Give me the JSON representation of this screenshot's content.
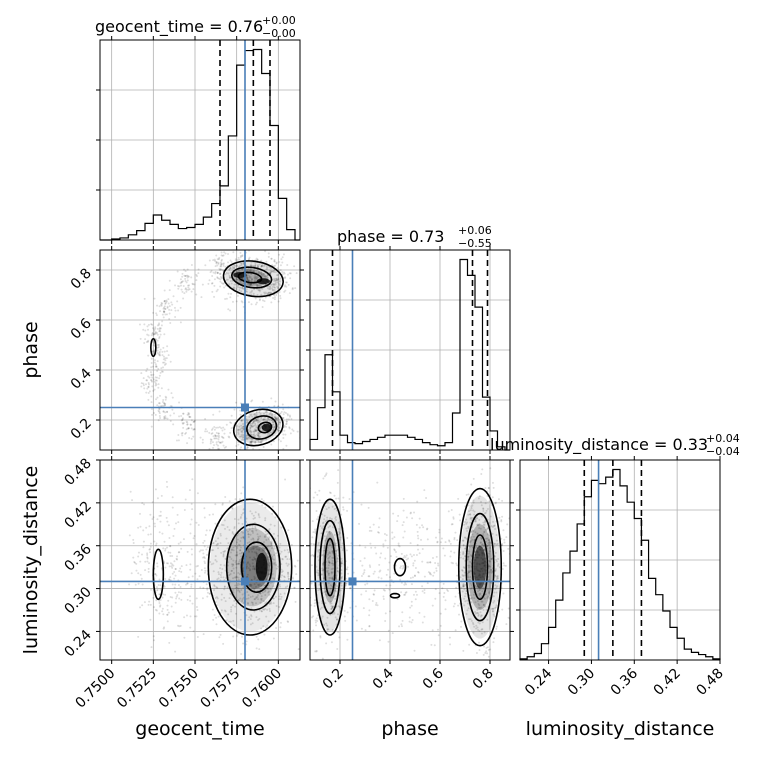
{
  "chart_data": {
    "type": "corner",
    "parameters": [
      "geocent_time",
      "phase",
      "luminosity_distance"
    ],
    "titles": [
      {
        "param": "geocent_time",
        "text": "geocent_time = 0.76",
        "plus": "+0.00",
        "minus": "−0.00"
      },
      {
        "param": "phase",
        "text": "phase = 0.73",
        "plus": "+0.06",
        "minus": "−0.55"
      },
      {
        "param": "luminosity_distance",
        "text": "luminosity_distance = 0.33",
        "plus": "+0.04",
        "minus": "−0.04"
      }
    ],
    "axes": {
      "geocent_time": {
        "range": [
          0.7493,
          0.7613
        ],
        "ticks": [
          0.75,
          0.7525,
          0.755,
          0.7575,
          0.76
        ],
        "tick_labels": [
          "0.7500",
          "0.7525",
          "0.7550",
          "0.7575",
          "0.7600"
        ]
      },
      "phase": {
        "range": [
          0.08,
          0.88
        ],
        "ticks": [
          0.2,
          0.4,
          0.6,
          0.8
        ],
        "tick_labels": [
          "0.2",
          "0.4",
          "0.6",
          "0.8"
        ]
      },
      "luminosity_distance": {
        "range": [
          0.2,
          0.48
        ],
        "ticks": [
          0.24,
          0.3,
          0.36,
          0.42,
          0.48
        ],
        "tick_labels": [
          "0.24",
          "0.30",
          "0.36",
          "0.42",
          "0.48"
        ]
      }
    },
    "truths": {
      "geocent_time": 0.758,
      "phase": 0.25,
      "luminosity_distance": 0.31
    },
    "quantiles": {
      "geocent_time": [
        0.7565,
        0.7585,
        0.7595
      ],
      "phase": [
        0.17,
        0.73,
        0.79
      ],
      "luminosity_distance": [
        0.29,
        0.33,
        0.37
      ]
    },
    "histograms": {
      "geocent_time": {
        "edges": [
          0.75,
          0.7505,
          0.751,
          0.7515,
          0.752,
          0.7525,
          0.753,
          0.7535,
          0.754,
          0.7545,
          0.755,
          0.7555,
          0.756,
          0.7565,
          0.757,
          0.7575,
          0.758,
          0.7585,
          0.759,
          0.7595,
          0.76,
          0.7605,
          0.761
        ],
        "counts": [
          1,
          2,
          5,
          9,
          16,
          24,
          19,
          15,
          11,
          12,
          15,
          22,
          35,
          52,
          100,
          168,
          182,
          183,
          160,
          110,
          40,
          10
        ]
      },
      "phase": {
        "edges": [
          0.08,
          0.11,
          0.14,
          0.17,
          0.2,
          0.23,
          0.26,
          0.29,
          0.32,
          0.35,
          0.38,
          0.41,
          0.44,
          0.47,
          0.5,
          0.53,
          0.56,
          0.59,
          0.62,
          0.65,
          0.68,
          0.71,
          0.74,
          0.77,
          0.8,
          0.83,
          0.86
        ],
        "counts": [
          10,
          40,
          90,
          55,
          14,
          7,
          6,
          8,
          10,
          12,
          14,
          14,
          14,
          12,
          10,
          7,
          5,
          4,
          7,
          35,
          180,
          165,
          135,
          50,
          18,
          3
        ]
      },
      "luminosity_distance": {
        "edges": [
          0.2,
          0.21,
          0.22,
          0.23,
          0.24,
          0.25,
          0.26,
          0.27,
          0.28,
          0.29,
          0.3,
          0.31,
          0.32,
          0.33,
          0.34,
          0.35,
          0.36,
          0.37,
          0.38,
          0.39,
          0.4,
          0.41,
          0.42,
          0.43,
          0.44,
          0.45,
          0.46,
          0.47,
          0.48
        ],
        "counts": [
          1,
          3,
          6,
          15,
          30,
          55,
          80,
          100,
          125,
          150,
          165,
          162,
          168,
          175,
          160,
          145,
          130,
          110,
          75,
          60,
          45,
          30,
          20,
          10,
          7,
          5,
          3,
          1
        ]
      }
    },
    "scatter_2d": {
      "phase_vs_geocent_time": [
        {
          "x": 0.7525,
          "y": 0.35
        },
        {
          "x": 0.7528,
          "y": 0.45
        },
        {
          "x": 0.7525,
          "y": 0.55
        },
        {
          "x": 0.7532,
          "y": 0.65
        },
        {
          "x": 0.7545,
          "y": 0.75
        },
        {
          "x": 0.7565,
          "y": 0.8
        },
        {
          "x": 0.758,
          "y": 0.76
        },
        {
          "x": 0.7595,
          "y": 0.72
        },
        {
          "x": 0.7532,
          "y": 0.25
        },
        {
          "x": 0.7545,
          "y": 0.18
        },
        {
          "x": 0.7562,
          "y": 0.12
        },
        {
          "x": 0.7582,
          "y": 0.13
        },
        {
          "x": 0.7598,
          "y": 0.2
        }
      ]
    },
    "contour_panels": [
      "phase vs geocent_time",
      "luminosity_distance vs geocent_time",
      "luminosity_distance vs phase"
    ]
  }
}
